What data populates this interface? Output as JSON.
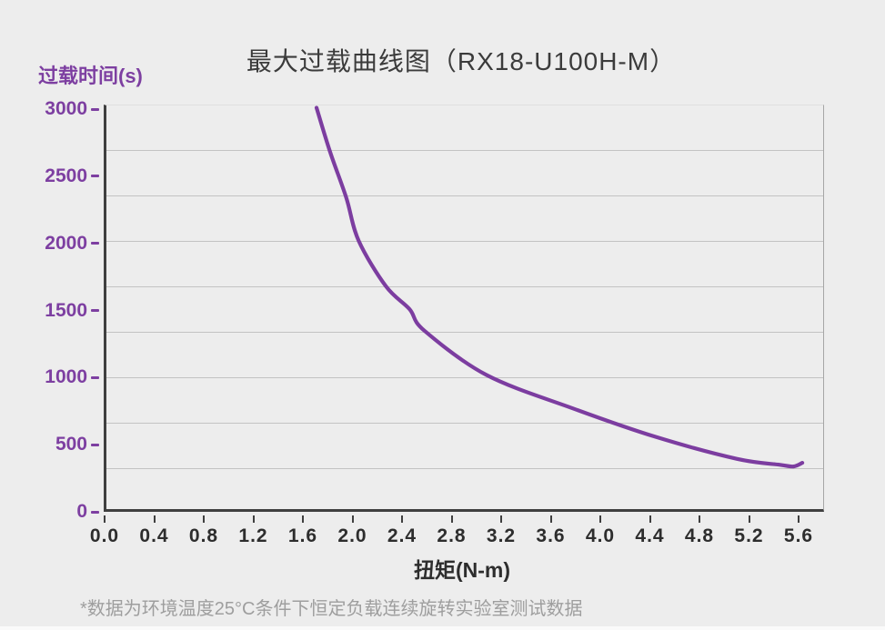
{
  "title": "最大过载曲线图（RX18-U100H-M）",
  "y_axis_title": "过载时间(s)",
  "x_axis_title": "扭矩(N-m)",
  "footnote": "*数据为环境温度25°C条件下恒定负载连续旋转实验室测试数据",
  "colors": {
    "background": "#EDEDED",
    "accent_purple": "#7D3FA1",
    "curve": "#7C3DA0",
    "title_text": "#3B3B3B",
    "axis_line": "#3F3F3F",
    "x_tick_label": "#2D2D2D",
    "gridline": "#C3C3C3",
    "footnote_text": "#9E9E9E"
  },
  "chart_data": {
    "type": "line",
    "title": "最大过载曲线图（RX18-U100H-M）",
    "xlabel": "扭矩(N-m)",
    "ylabel": "过载时间(s)",
    "xlim": [
      0,
      5.8
    ],
    "ylim": [
      0,
      3000
    ],
    "x_ticks": [
      "0.0",
      "0.4",
      "0.8",
      "1.2",
      "1.6",
      "2.0",
      "2.4",
      "2.8",
      "3.2",
      "3.6",
      "4.0",
      "4.4",
      "4.8",
      "5.2",
      "5.6"
    ],
    "y_ticks": [
      3000,
      2500,
      2000,
      1500,
      1000,
      500,
      0
    ],
    "grid": "horizontal-only",
    "legend": "none",
    "series": [
      {
        "name": "最大过载曲线",
        "points": [
          [
            1.71,
            3010
          ],
          [
            1.82,
            2680
          ],
          [
            1.95,
            2340
          ],
          [
            2.05,
            2020
          ],
          [
            2.27,
            1680
          ],
          [
            2.46,
            1510
          ],
          [
            2.58,
            1350
          ],
          [
            3.08,
            1020
          ],
          [
            3.78,
            770
          ],
          [
            4.44,
            560
          ],
          [
            5.1,
            395
          ],
          [
            5.45,
            350
          ],
          [
            5.56,
            338
          ],
          [
            5.63,
            365
          ]
        ]
      }
    ]
  }
}
